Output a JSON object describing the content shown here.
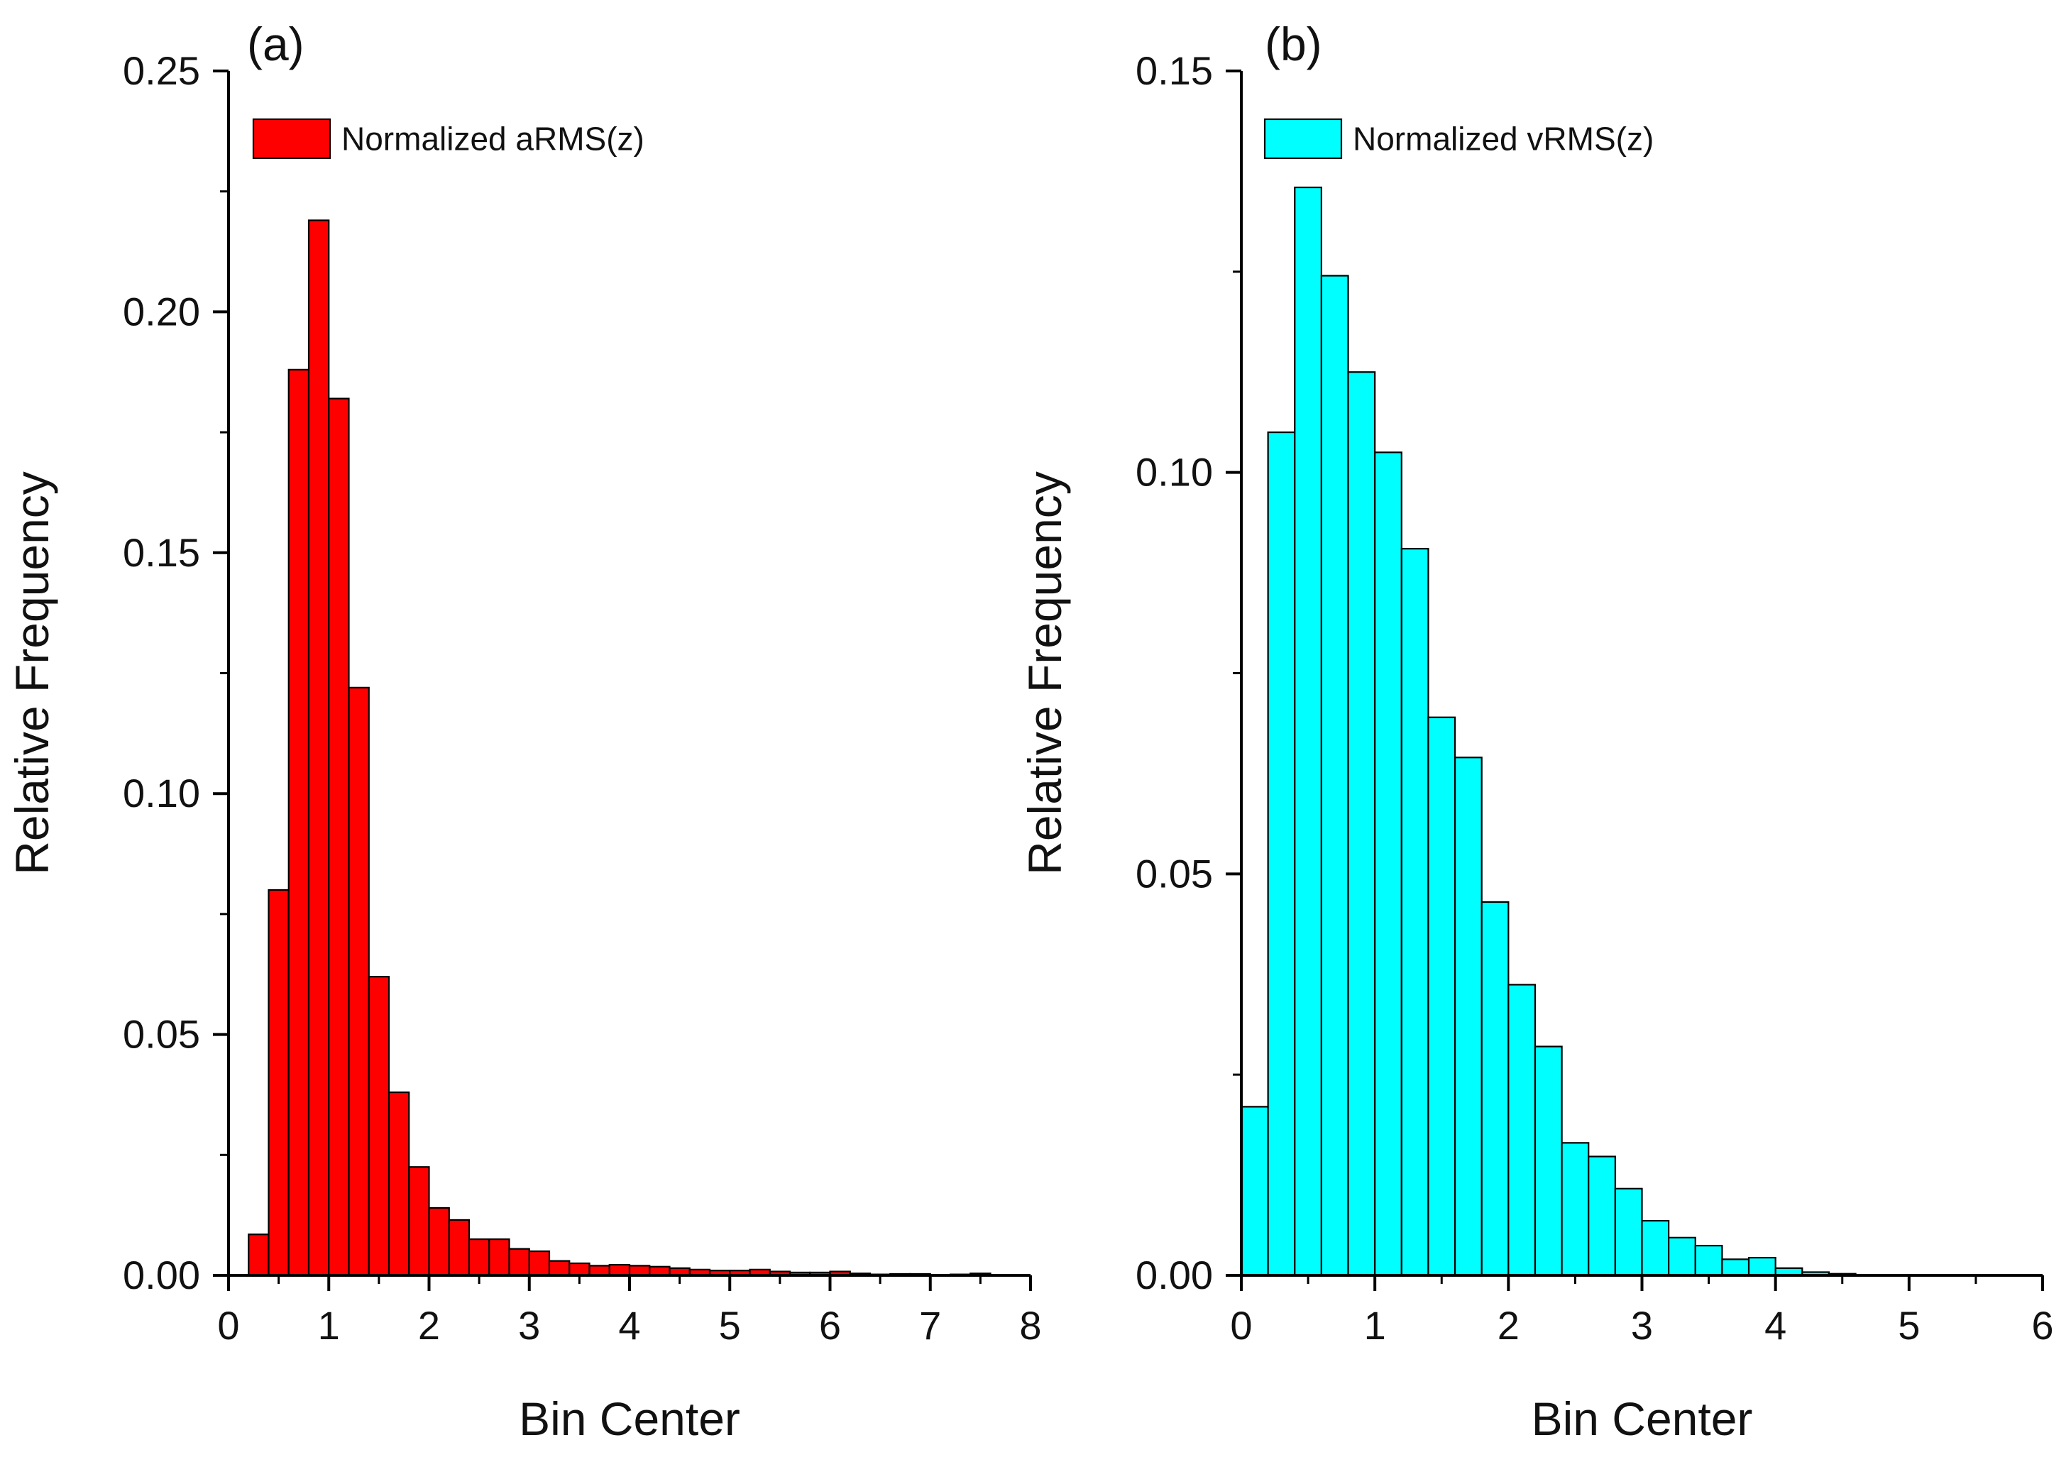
{
  "chart_data": [
    {
      "type": "bar",
      "panel_label": "(a)",
      "xlabel": "Bin Center",
      "ylabel": "Relative Frequency",
      "xlim": [
        0,
        8
      ],
      "ylim": [
        0,
        0.25
      ],
      "x_ticks": [
        "0",
        "1",
        "2",
        "3",
        "4",
        "5",
        "6",
        "7",
        "8"
      ],
      "y_ticks": [
        "0.00",
        "0.05",
        "0.10",
        "0.15",
        "0.20",
        "0.25"
      ],
      "bar_width": 0.2,
      "legend": {
        "label": "Normalized aRMS(z)",
        "color": "#ff0000",
        "position": "top-left"
      },
      "series": [
        {
          "name": "Normalized aRMS(z)",
          "color": "#ff0000",
          "x": [
            0.3,
            0.5,
            0.7,
            0.9,
            1.1,
            1.3,
            1.5,
            1.7,
            1.9,
            2.1,
            2.3,
            2.5,
            2.7,
            2.9,
            3.1,
            3.3,
            3.5,
            3.7,
            3.9,
            4.1,
            4.3,
            4.5,
            4.7,
            4.9,
            5.1,
            5.3,
            5.5,
            5.7,
            5.9,
            6.1,
            6.3,
            6.5,
            6.7,
            6.9,
            7.1,
            7.3,
            7.5
          ],
          "values": [
            0.0085,
            0.08,
            0.188,
            0.219,
            0.182,
            0.122,
            0.062,
            0.038,
            0.0225,
            0.014,
            0.0115,
            0.0075,
            0.0075,
            0.0055,
            0.005,
            0.003,
            0.0025,
            0.002,
            0.0022,
            0.002,
            0.0018,
            0.0015,
            0.0012,
            0.001,
            0.001,
            0.0012,
            0.0008,
            0.0006,
            0.0006,
            0.0008,
            0.0004,
            0.0002,
            0.0003,
            0.0003,
            0.0001,
            0.0002,
            0.0004
          ]
        }
      ]
    },
    {
      "type": "bar",
      "panel_label": "(b)",
      "xlabel": "Bin Center",
      "ylabel": "Relative Frequency",
      "xlim": [
        0,
        6
      ],
      "ylim": [
        0,
        0.15
      ],
      "x_ticks": [
        "0",
        "1",
        "2",
        "3",
        "4",
        "5",
        "6"
      ],
      "y_ticks": [
        "0.00",
        "0.05",
        "0.10",
        "0.15"
      ],
      "bar_width": 0.2,
      "legend": {
        "label": "Normalized vRMS(z)",
        "color": "#00ffff",
        "position": "top-left"
      },
      "series": [
        {
          "name": "Normalized vRMS(z)",
          "color": "#00ffff",
          "x": [
            0.1,
            0.3,
            0.5,
            0.7,
            0.9,
            1.1,
            1.3,
            1.5,
            1.7,
            1.9,
            2.1,
            2.3,
            2.5,
            2.7,
            2.9,
            3.1,
            3.3,
            3.5,
            3.7,
            3.9,
            4.1,
            4.3,
            4.5
          ],
          "values": [
            0.021,
            0.105,
            0.1355,
            0.1245,
            0.1125,
            0.1025,
            0.0905,
            0.0695,
            0.0645,
            0.0465,
            0.0362,
            0.0285,
            0.0165,
            0.0148,
            0.0108,
            0.0068,
            0.0047,
            0.0037,
            0.002,
            0.0022,
            0.0009,
            0.0004,
            0.0002
          ]
        }
      ]
    }
  ]
}
